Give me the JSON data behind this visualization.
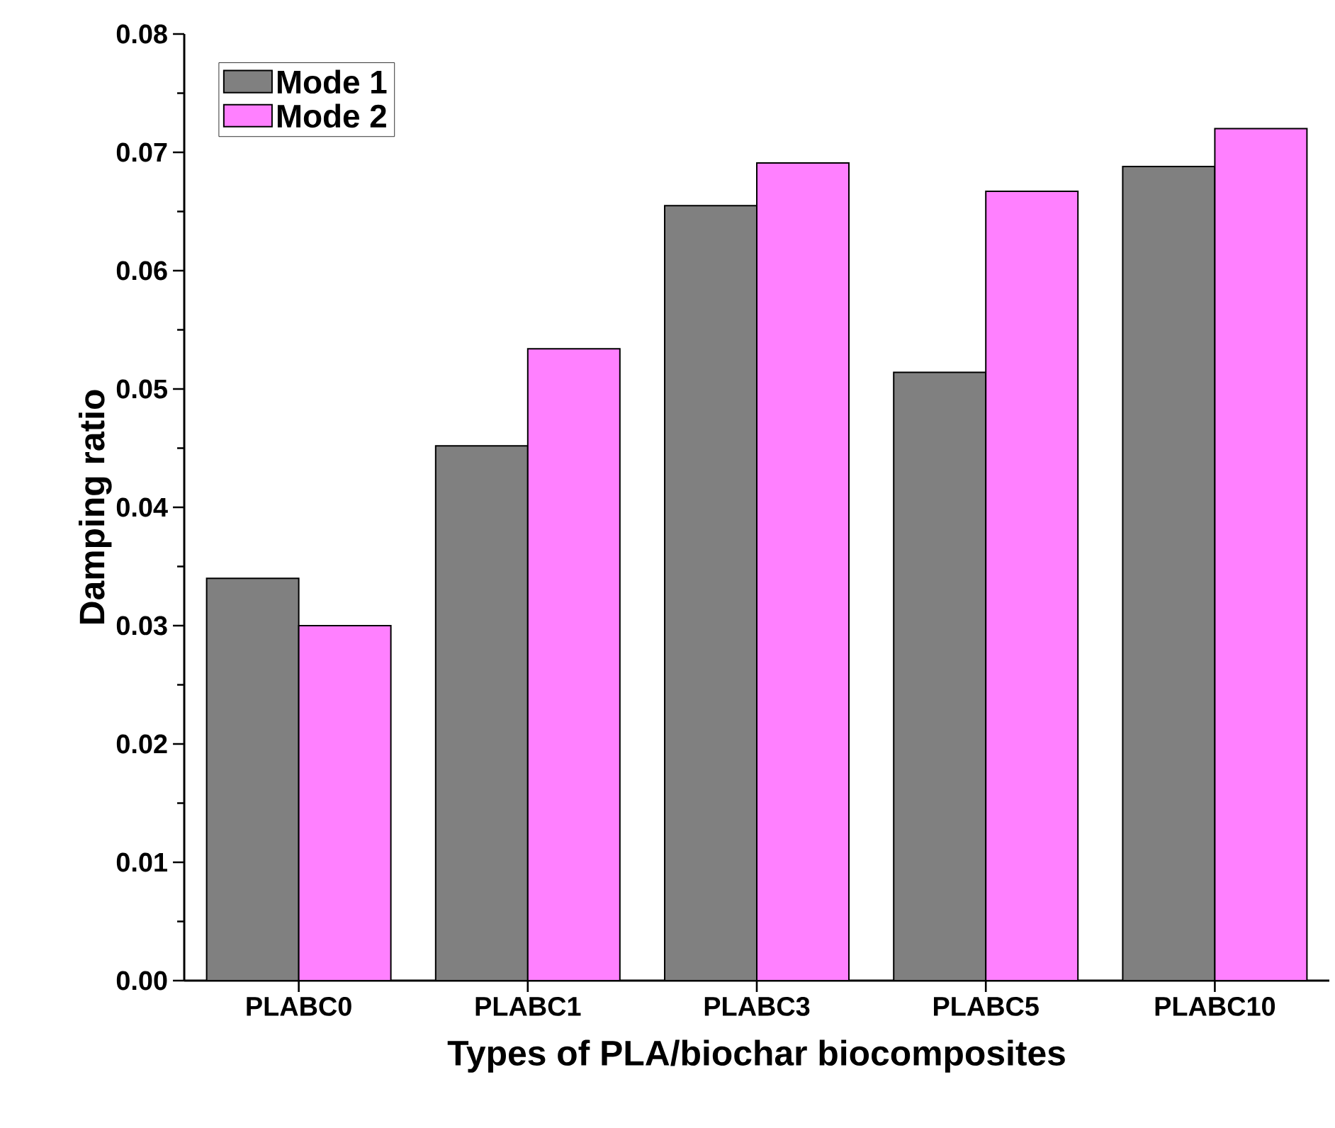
{
  "chart_data": {
    "type": "bar",
    "xlabel": "Types of PLA/biochar biocomposites",
    "ylabel": "Damping ratio",
    "categories": [
      "PLABC0",
      "PLABC1",
      "PLABC3",
      "PLABC5",
      "PLABC10"
    ],
    "series": [
      {
        "name": "Mode 1",
        "color": "#808080",
        "values": [
          0.034,
          0.0452,
          0.0655,
          0.0514,
          0.0688
        ]
      },
      {
        "name": "Mode 2",
        "color": "#ff80ff",
        "values": [
          0.03,
          0.0534,
          0.0691,
          0.0667,
          0.072
        ]
      }
    ],
    "ylim": [
      0,
      0.08
    ],
    "yticks": [
      {
        "value": 0,
        "label": "0.00"
      },
      {
        "value": 0.01,
        "label": "0.01"
      },
      {
        "value": 0.02,
        "label": "0.02"
      },
      {
        "value": 0.03,
        "label": "0.03"
      },
      {
        "value": 0.04,
        "label": "0.04"
      },
      {
        "value": 0.05,
        "label": "0.05"
      },
      {
        "value": 0.06,
        "label": "0.06"
      },
      {
        "value": 0.07,
        "label": "0.07"
      },
      {
        "value": 0.08,
        "label": "0.08"
      }
    ],
    "grid": false,
    "legend": "top left"
  }
}
